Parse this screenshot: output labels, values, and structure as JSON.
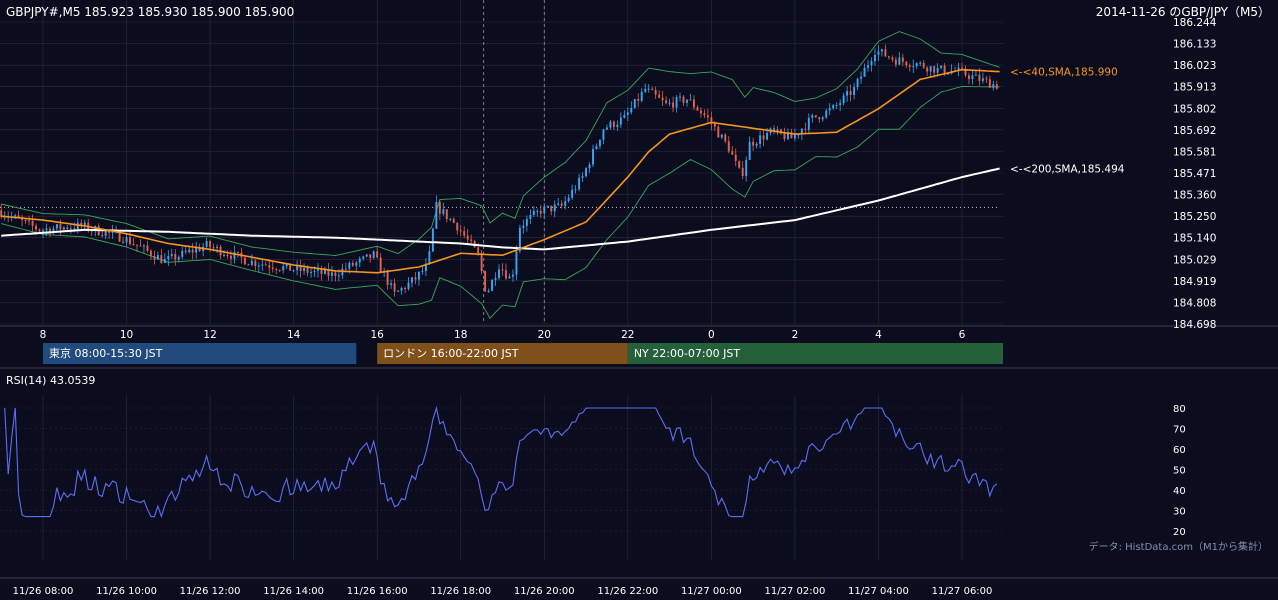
{
  "header": {
    "left": "GBPJPY#,M5 185.923 185.930 185.900 185.900",
    "right": "2014-11-26 のGBP/JPY（M5）"
  },
  "colors": {
    "background": "#0b0d1f",
    "grid": "#2a2d3e",
    "text": "#ffffff",
    "candle_up": "#38a6f3",
    "candle_down": "#e0624f",
    "sma40": "#f7941d",
    "sma200": "#ffffff",
    "bollinger": "#3aa657",
    "rsi": "#5b6ff2",
    "tokyo": "#204b7c",
    "london": "#80501a",
    "ny": "#24603a",
    "reference_line": "#c8c8c8"
  },
  "chart_data": [
    {
      "type": "candlestick",
      "name": "GBPJPY M5",
      "ylim": [
        184.698,
        186.244
      ],
      "y_ticks": [
        186.244,
        186.133,
        186.023,
        185.913,
        185.802,
        185.692,
        185.581,
        185.471,
        185.36,
        185.25,
        185.14,
        185.029,
        184.919,
        184.808,
        184.698
      ],
      "x_ticks": [
        "8",
        "10",
        "12",
        "14",
        "16",
        "18",
        "20",
        "22",
        "0",
        "2",
        "4",
        "6"
      ],
      "x_tick_hours": [
        8,
        10,
        12,
        14,
        16,
        18,
        20,
        22,
        24,
        26,
        28,
        30
      ],
      "x_range_hours": [
        7,
        31.3
      ],
      "last_hour": 30.9,
      "dotted_level": 185.295,
      "vertical_markers_hours": [
        18.55,
        20.0
      ],
      "annotations": [
        {
          "label": "<-<40,SMA,185.990",
          "value": 185.99,
          "series": "sma40"
        },
        {
          "label": "<-<200,SMA,185.494",
          "value": 185.494,
          "series": "sma200"
        }
      ],
      "path_hours": [
        7.0,
        8.0,
        9.0,
        10.0,
        11.0,
        12.0,
        13.0,
        14.0,
        15.0,
        16.0,
        16.5,
        17.0,
        17.3,
        17.5,
        18.0,
        18.5,
        18.7,
        19.0,
        19.3,
        19.5,
        20.0,
        20.5,
        21.0,
        21.5,
        22.0,
        22.5,
        23.0,
        23.5,
        24.0,
        24.5,
        24.8,
        25.0,
        25.5,
        26.0,
        26.5,
        27.0,
        27.5,
        28.0,
        28.5,
        29.0,
        29.5,
        30.0,
        30.5,
        30.9
      ],
      "path_values": [
        185.28,
        185.18,
        185.2,
        185.14,
        185.02,
        185.1,
        185.02,
        184.98,
        184.95,
        185.05,
        184.85,
        184.93,
        185.0,
        185.3,
        185.2,
        185.05,
        184.85,
        185.0,
        184.92,
        185.2,
        185.28,
        185.3,
        185.45,
        185.7,
        185.75,
        185.9,
        185.82,
        185.85,
        185.75,
        185.6,
        185.45,
        185.62,
        185.68,
        185.65,
        185.75,
        185.8,
        185.9,
        186.1,
        186.05,
        186.03,
        186.0,
        185.99,
        185.95,
        185.92
      ],
      "sma40_hours": [
        7.0,
        8.0,
        9.0,
        10.0,
        11.0,
        12.0,
        13.0,
        14.0,
        15.0,
        16.0,
        17.0,
        18.0,
        19.0,
        20.0,
        21.0,
        22.0,
        22.5,
        23.0,
        24.0,
        25.0,
        26.0,
        27.0,
        28.0,
        29.0,
        30.0,
        30.9
      ],
      "sma40_values": [
        185.25,
        185.23,
        185.2,
        185.16,
        185.11,
        185.08,
        185.04,
        185.0,
        184.97,
        184.96,
        184.99,
        185.06,
        185.05,
        185.13,
        185.22,
        185.45,
        185.58,
        185.67,
        185.73,
        185.7,
        185.67,
        185.68,
        185.8,
        185.95,
        186.0,
        185.99
      ],
      "sma200_hours": [
        7.0,
        9.0,
        11.0,
        13.0,
        15.0,
        17.0,
        18.0,
        19.0,
        20.0,
        22.0,
        24.0,
        26.0,
        27.0,
        28.0,
        29.0,
        30.0,
        30.9
      ],
      "sma200_values": [
        185.15,
        185.18,
        185.17,
        185.15,
        185.14,
        185.12,
        185.11,
        185.09,
        185.08,
        185.12,
        185.18,
        185.23,
        185.28,
        185.33,
        185.39,
        185.45,
        185.494
      ],
      "bb_width_hours": [
        7.0,
        10.0,
        13.0,
        16.0,
        17.5,
        18.5,
        19.5,
        20.5,
        21.5,
        22.5,
        23.5,
        24.5,
        25.5,
        26.5,
        27.5,
        28.5,
        29.5,
        30.9
      ],
      "bb_width_values": [
        0.05,
        0.06,
        0.06,
        0.1,
        0.2,
        0.25,
        0.22,
        0.3,
        0.35,
        0.3,
        0.22,
        0.28,
        0.2,
        0.15,
        0.2,
        0.25,
        0.1,
        0.05
      ]
    },
    {
      "type": "line",
      "name": "RSI(14) 43.0539",
      "ylim": [
        15,
        85
      ],
      "y_ticks": [
        80,
        70,
        60,
        50,
        40,
        30,
        20
      ],
      "last_value": 43.0539
    }
  ],
  "sessions": [
    {
      "label": "東京 08:00-15:30 JST",
      "start_hour": 8.0,
      "end_hour": 15.5,
      "color_key": "tokyo"
    },
    {
      "label": "ロンドン 16:00-22:00 JST",
      "start_hour": 16.0,
      "end_hour": 22.0,
      "color_key": "london"
    },
    {
      "label": "NY 22:00-07:00 JST",
      "start_hour": 22.0,
      "end_hour": 31.0,
      "color_key": "ny"
    }
  ],
  "rsi_panel": {
    "label": "RSI(14) 43.0539",
    "source": "データ: HistData.com（M1から集計）"
  },
  "bottom_axis": {
    "labels": [
      "11/26 08:00",
      "11/26 10:00",
      "11/26 12:00",
      "11/26 14:00",
      "11/26 16:00",
      "11/26 18:00",
      "11/26 20:00",
      "11/26 22:00",
      "11/27 00:00",
      "11/27 02:00",
      "11/27 04:00",
      "11/27 06:00"
    ]
  }
}
